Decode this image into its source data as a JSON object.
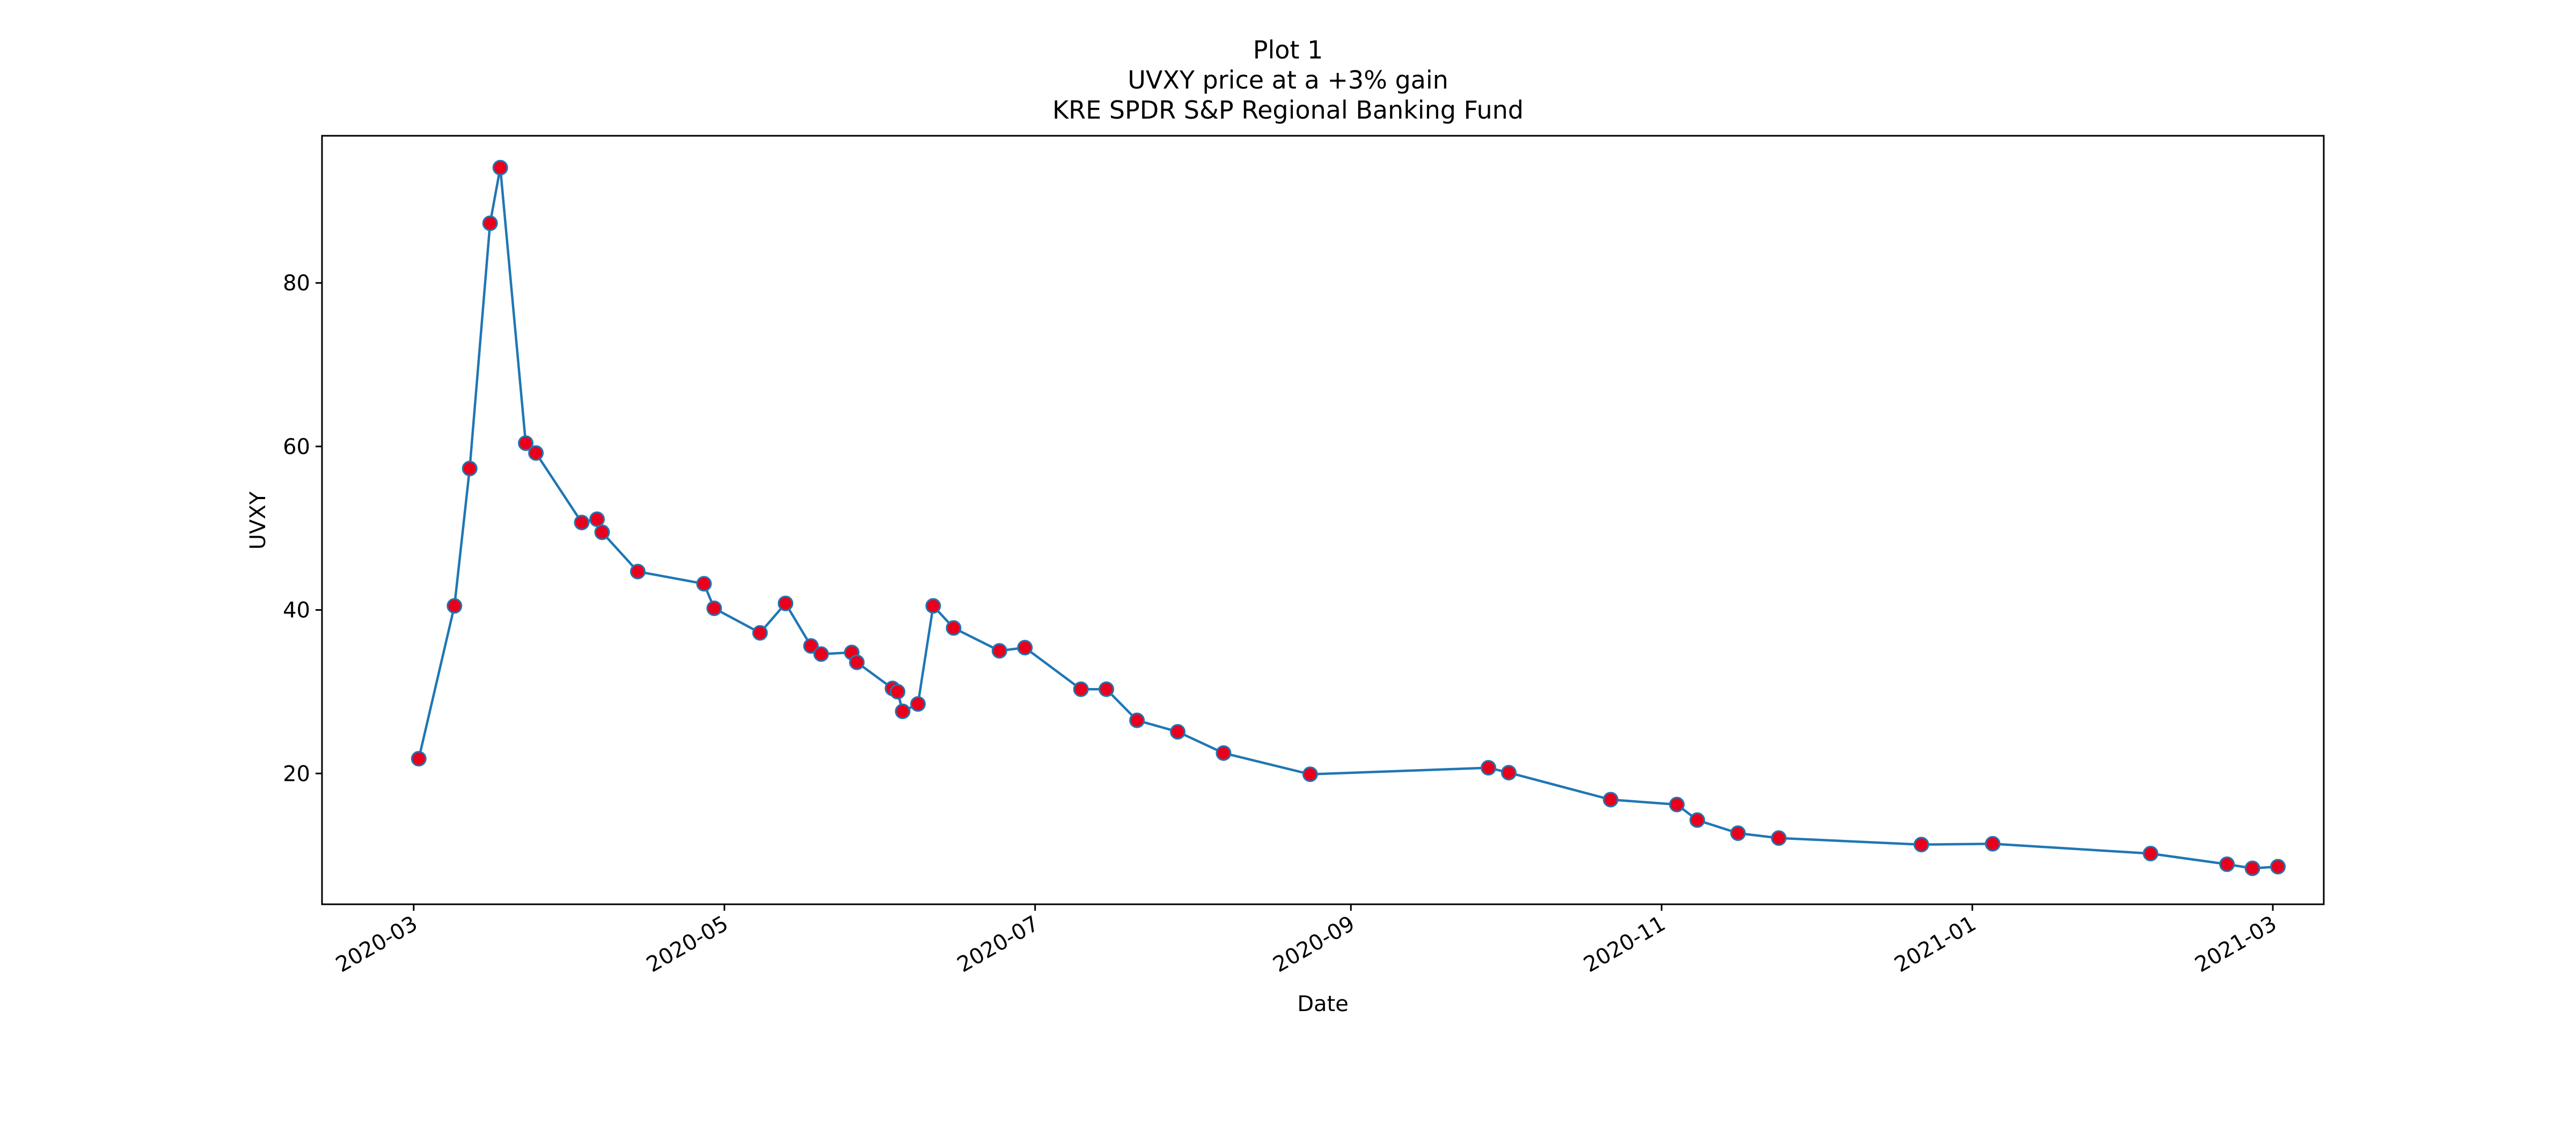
{
  "chart_data": {
    "type": "line",
    "title_lines": [
      "Plot 1",
      "UVXY price at a +3% gain",
      "KRE SPDR S&P Regional Banking Fund"
    ],
    "xlabel": "Date",
    "ylabel": "UVXY",
    "x_ticks": [
      "2020-03",
      "2020-05",
      "2020-07",
      "2020-09",
      "2020-11",
      "2021-01",
      "2021-03"
    ],
    "y_ticks": [
      20,
      40,
      60,
      80
    ],
    "xlim": [
      "2020-02-12",
      "2021-03-11"
    ],
    "ylim": [
      4,
      98
    ],
    "grid": false,
    "line_color": "#1f77b4",
    "marker_color": "#e8001c",
    "series": [
      {
        "x": [
          "2020-03-02",
          "2020-03-09",
          "2020-03-12",
          "2020-03-16",
          "2020-03-18",
          "2020-03-23",
          "2020-03-25",
          "2020-04-03",
          "2020-04-06",
          "2020-04-07",
          "2020-04-14",
          "2020-04-27",
          "2020-04-29",
          "2020-05-08",
          "2020-05-13",
          "2020-05-18",
          "2020-05-20",
          "2020-05-26",
          "2020-05-27",
          "2020-06-03",
          "2020-06-04",
          "2020-06-05",
          "2020-06-08",
          "2020-06-11",
          "2020-06-15",
          "2020-06-24",
          "2020-06-29",
          "2020-07-10",
          "2020-07-15",
          "2020-07-21",
          "2020-07-29",
          "2020-08-07",
          "2020-08-24",
          "2020-09-28",
          "2020-10-02",
          "2020-10-22",
          "2020-11-04",
          "2020-11-08",
          "2020-11-16",
          "2020-11-24",
          "2020-12-22",
          "2021-01-05",
          "2021-02-05",
          "2021-02-20",
          "2021-02-25",
          "2021-03-02"
        ],
        "y": [
          21.8,
          40.5,
          57.3,
          87.3,
          94.1,
          60.4,
          59.2,
          50.7,
          51.1,
          49.5,
          44.7,
          43.2,
          40.2,
          37.2,
          40.8,
          35.6,
          34.6,
          34.8,
          33.6,
          30.4,
          30.0,
          27.6,
          28.5,
          40.5,
          37.8,
          35.0,
          35.4,
          30.3,
          30.3,
          26.5,
          25.1,
          22.5,
          19.9,
          20.7,
          20.1,
          16.8,
          16.2,
          14.3,
          12.7,
          12.1,
          11.3,
          11.4,
          10.2,
          8.9,
          8.4,
          8.6
        ]
      }
    ]
  }
}
